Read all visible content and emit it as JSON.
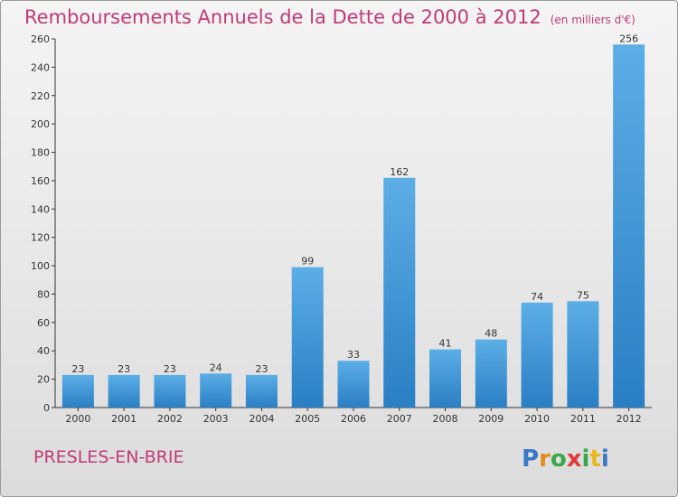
{
  "title": "Remboursements Annuels de la Dette de 2000 à 2012",
  "unit": "(en milliers d'€)",
  "commune": "PRESLES-EN-BRIE",
  "logo_text": "Proxiti",
  "colors": {
    "accent": "#c23a78",
    "bar_light": "#5caee6",
    "bar_dark": "#2a7fc4"
  },
  "chart_data": {
    "type": "bar",
    "title": "Remboursements Annuels de la Dette de 2000 à 2012",
    "subtitle": "(en milliers d'€)",
    "xlabel": "",
    "ylabel": "",
    "categories": [
      "2000",
      "2001",
      "2002",
      "2003",
      "2004",
      "2005",
      "2006",
      "2007",
      "2008",
      "2009",
      "2010",
      "2011",
      "2012"
    ],
    "values": [
      23,
      23,
      23,
      24,
      23,
      99,
      33,
      162,
      41,
      48,
      74,
      75,
      256
    ],
    "ylim": [
      0,
      260
    ],
    "yticks": [
      0,
      20,
      40,
      60,
      80,
      100,
      120,
      140,
      160,
      180,
      200,
      220,
      240,
      260
    ],
    "grid": false,
    "legend": "none"
  }
}
